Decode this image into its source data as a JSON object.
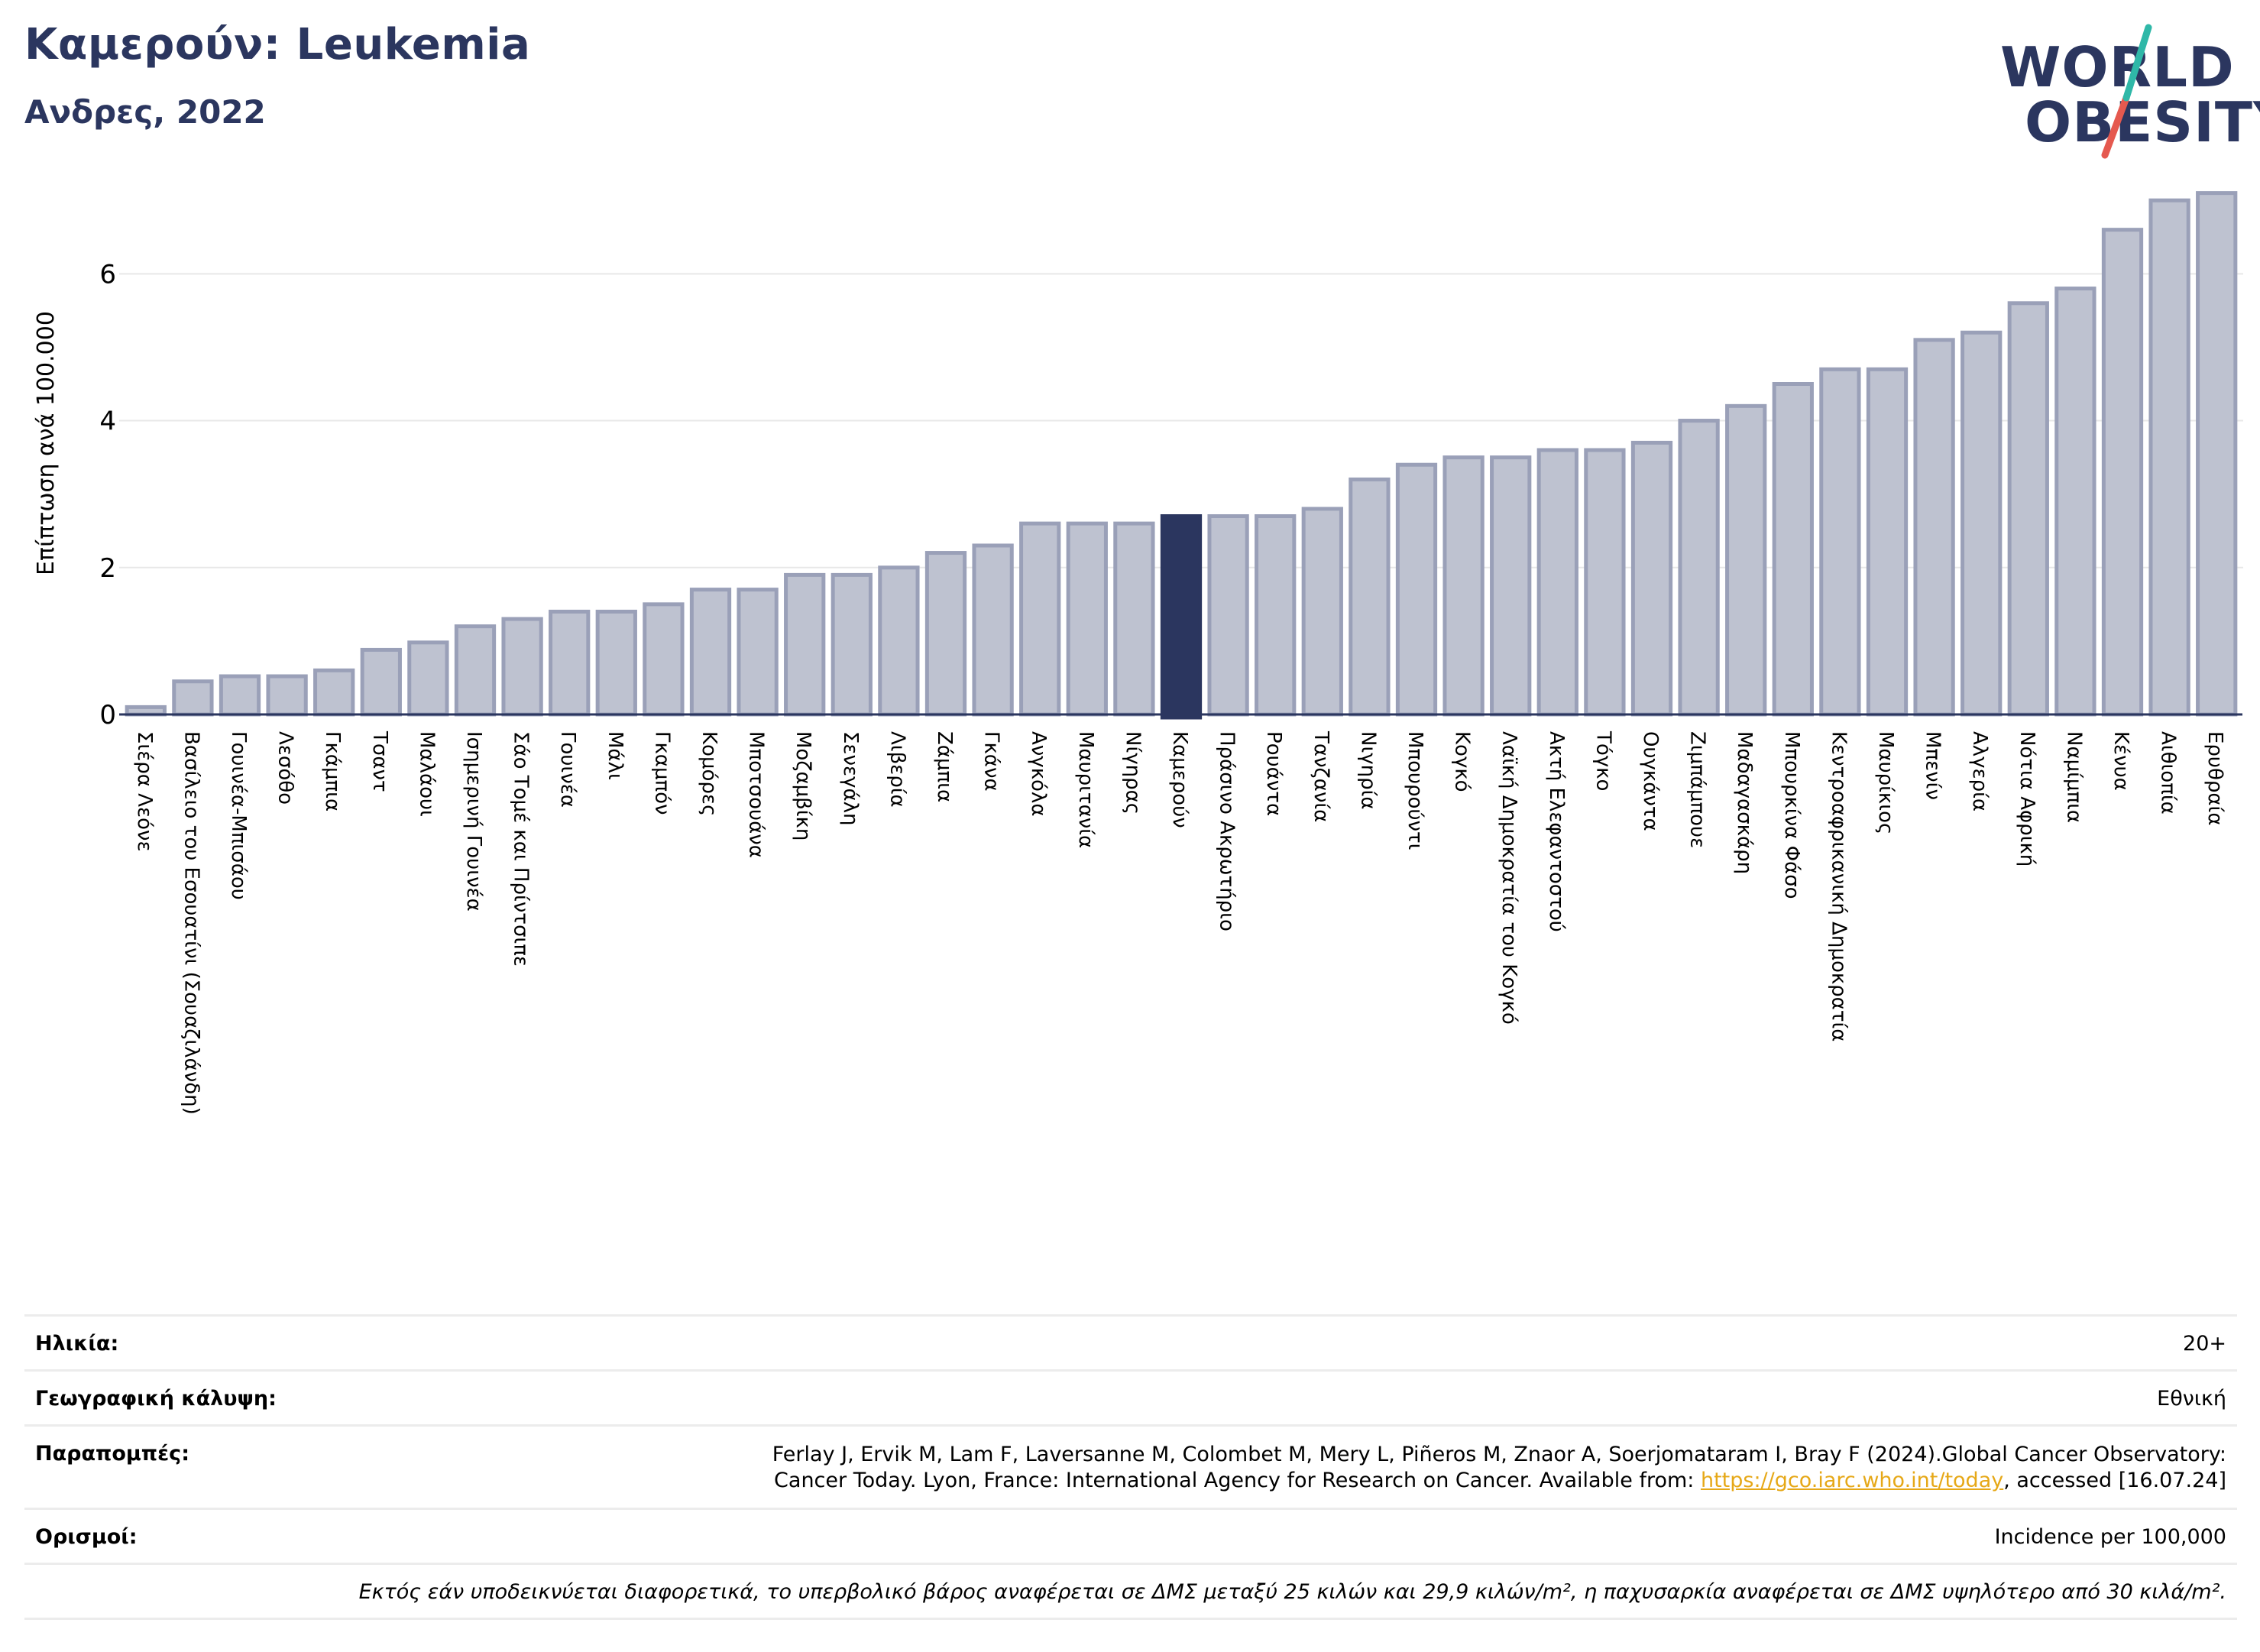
{
  "header": {
    "title": "Καμερούν: Leukemia",
    "subtitle": "Ανδρες, 2022"
  },
  "logo": {
    "line1": "WORLD",
    "line2": "OBESITY",
    "slash_colors": [
      "#2fb8a8",
      "#e5594f"
    ]
  },
  "colors": {
    "bar": "#bec2d0",
    "bar_border": "#9aa0b8",
    "highlight": "#2b365f",
    "grid": "#e8e8e8",
    "axis": "#2b365f"
  },
  "chart_data": {
    "type": "bar",
    "ylabel": "Επίπτωση ανά 100.000",
    "ylim": [
      0,
      7.2
    ],
    "yticks": [
      0,
      2,
      4,
      6
    ],
    "grid": true,
    "highlight": "Καμερούν",
    "categories": [
      "Σιέρα Λεόνε",
      "Βασίλειο του Εσουατίνι (Σουαζιλάνδη)",
      "Γουινέα-Μπισάου",
      "Λεσόθο",
      "Γκάμπια",
      "Τσαντ",
      "Μαλάουι",
      "Ισημερινή Γουινέα",
      "Σάο Τομέ και Πρίντσιπε",
      "Γουινέα",
      "Μάλι",
      "Γκαμπόν",
      "Κομόρες",
      "Μποτσουάνα",
      "Μοζαμβίκη",
      "Σενεγάλη",
      "Λιβερία",
      "Ζάμπια",
      "Γκάνα",
      "Ανγκόλα",
      "Μαυριτανία",
      "Νίγηρας",
      "Καμερούν",
      "Πράσινο Ακρωτήριο",
      "Ρουάντα",
      "Τανζανία",
      "Νιγηρία",
      "Μπουρούντι",
      "Κογκό",
      "Λαϊκή Δημοκρατία του Κογκό",
      "Ακτή Ελεφαντοστού",
      "Τόγκο",
      "Ουγκάντα",
      "Ζιμπάμπουε",
      "Μαδαγασκάρη",
      "Μπουρκίνα Φάσο",
      "Κεντροαφρικανική Δημοκρατία",
      "Μαυρίκιος",
      "Μπενίν",
      "Αλγερία",
      "Νότια Αφρική",
      "Ναμίμπια",
      "Κένυα",
      "Αιθιοπία",
      "Ερυθραία"
    ],
    "values": [
      0.1,
      0.45,
      0.52,
      0.52,
      0.6,
      0.88,
      0.98,
      1.2,
      1.3,
      1.4,
      1.4,
      1.5,
      1.7,
      1.7,
      1.9,
      1.9,
      2.0,
      2.2,
      2.3,
      2.6,
      2.6,
      2.6,
      2.7,
      2.7,
      2.7,
      2.8,
      3.2,
      3.4,
      3.5,
      3.5,
      3.6,
      3.6,
      3.7,
      4.0,
      4.2,
      4.5,
      4.7,
      4.7,
      5.1,
      5.2,
      5.6,
      5.8,
      6.6,
      7.0,
      7.1
    ]
  },
  "info": {
    "age_label": "Ηλικία:",
    "age_value": "20+",
    "coverage_label": "Γεωγραφική κάλυψη:",
    "coverage_value": "Εθνική",
    "refs_label": "Παραπομπές:",
    "refs_text_1": "Ferlay J, Ervik M, Lam F, Laversanne M, Colombet M, Mery L, Piñeros M, Znaor A, Soerjomataram I, Bray F (2024).Global Cancer Observatory:",
    "refs_text_2": "Cancer Today. Lyon, France: International Agency for Research on Cancer. Available from: ",
    "refs_link": "https://gco.iarc.who.int/today",
    "refs_text_3": ", accessed [16.07.24]",
    "defs_label": "Ορισμοί:",
    "defs_value": "Incidence per 100,000",
    "note": "Εκτός εάν υποδεικνύεται διαφορετικά, το υπερβολικό βάρος αναφέρεται σε ΔΜΣ μεταξύ 25 κιλών και 29,9 κιλών/m², η παχυσαρκία αναφέρεται σε ΔΜΣ υψηλότερο από 30 κιλά/m²."
  }
}
